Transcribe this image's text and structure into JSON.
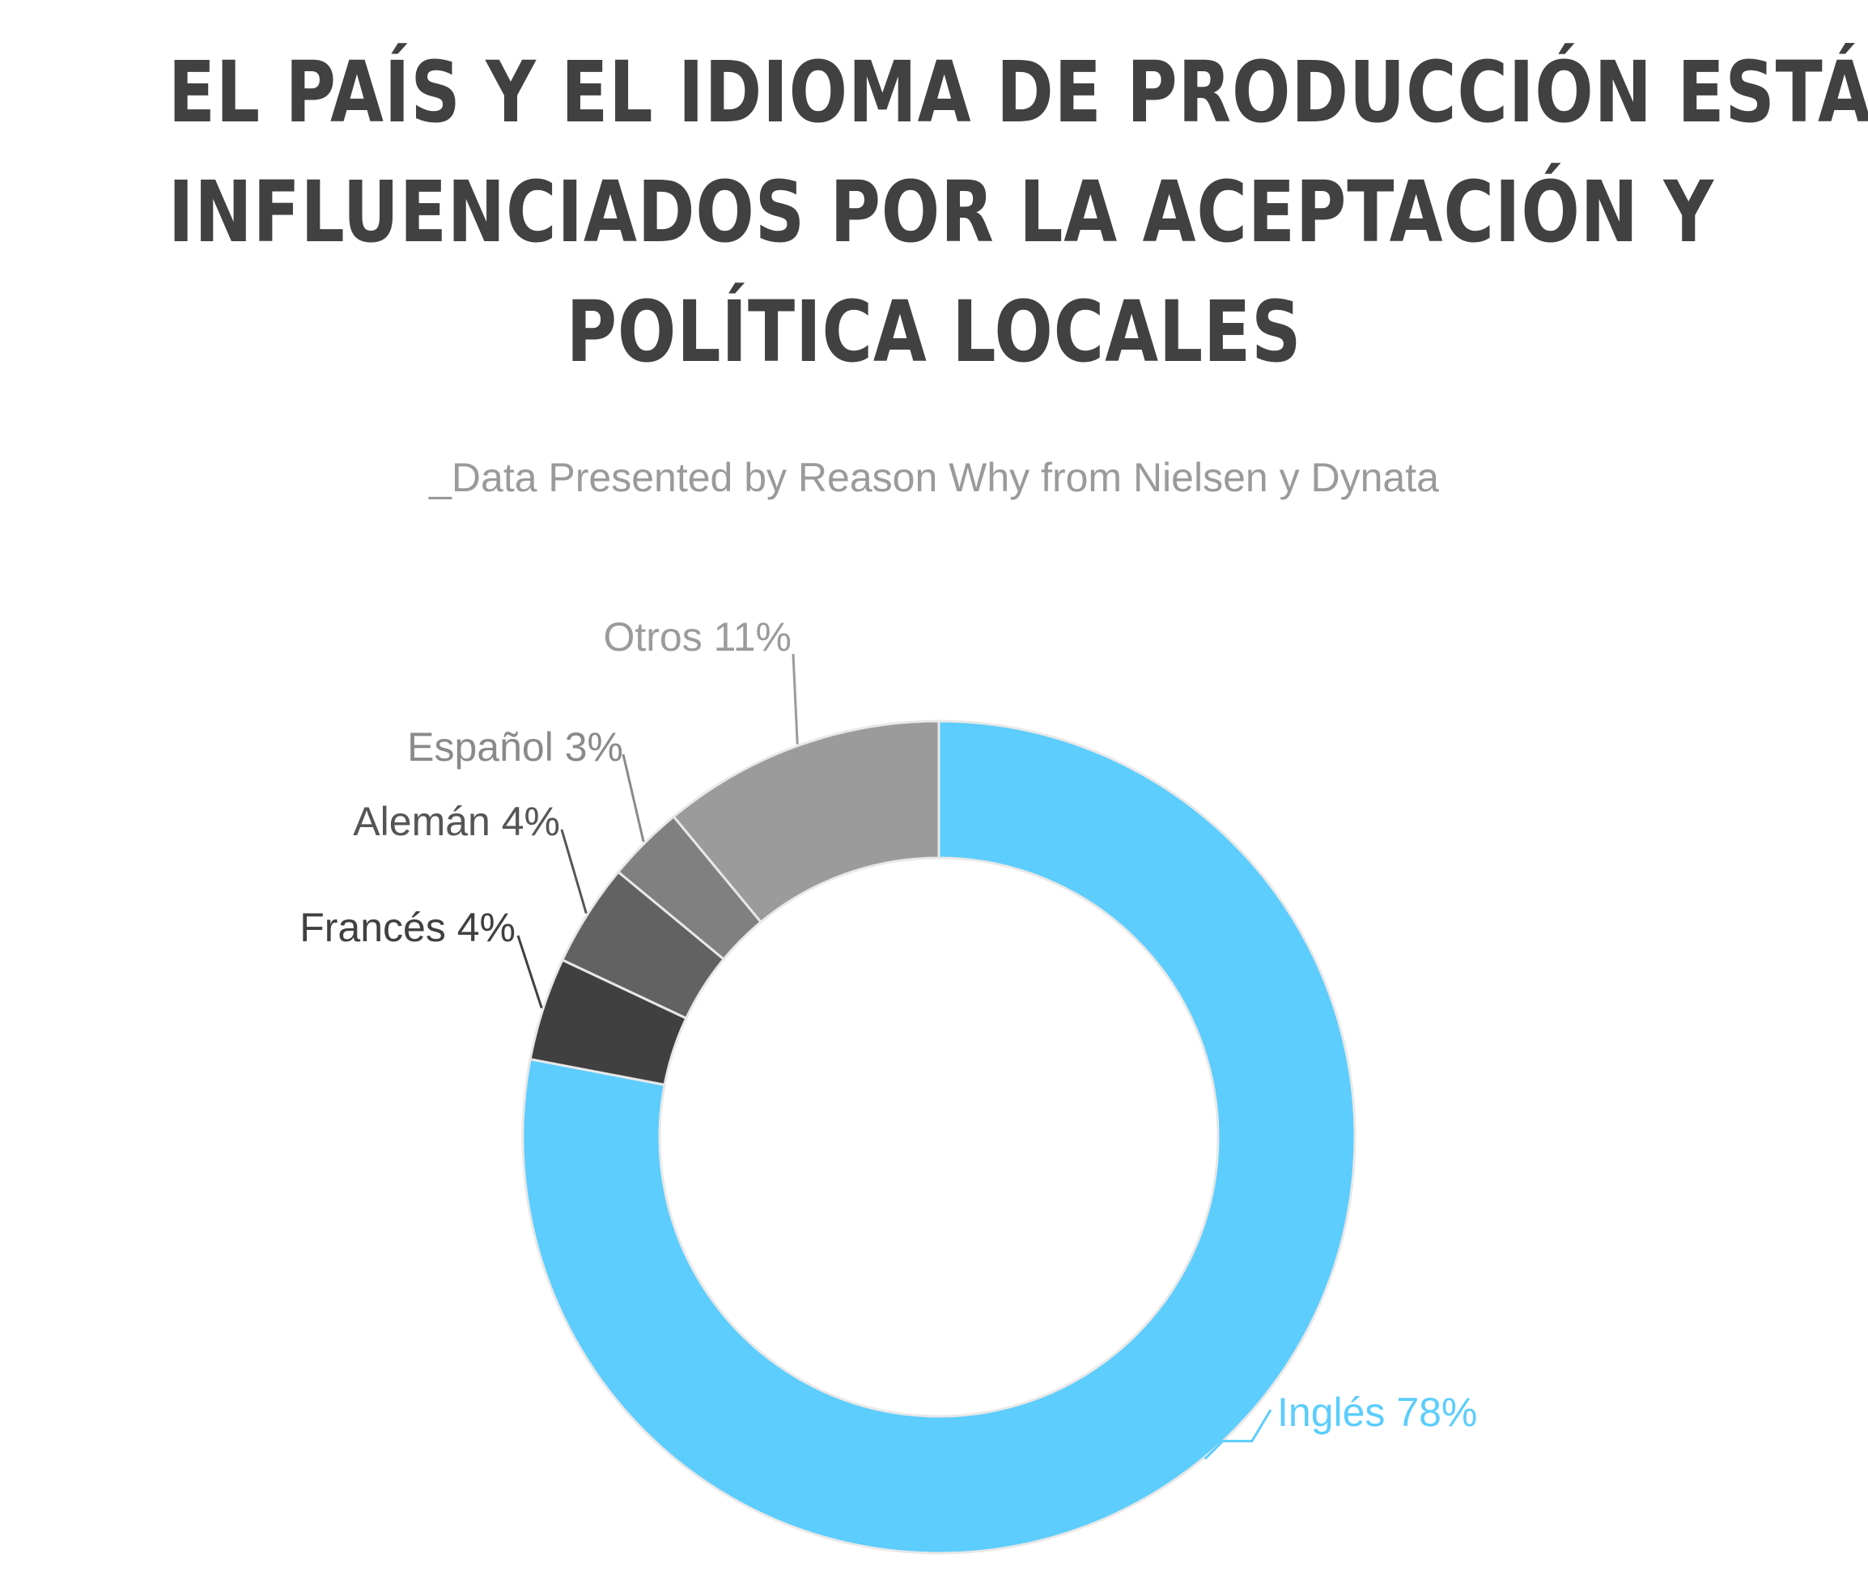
{
  "header": {
    "title_lines": [
      "EL PAÍS Y EL IDIOMA DE PRODUCCIÓN ESTÁN",
      "INFLUENCIADOS POR LA ACEPTACIÓN Y",
      "POLÍTICA LOCALES"
    ],
    "subtitle": "_Data Presented by Reason Why from Nielsen y Dynata"
  },
  "chart_data": {
    "type": "pie",
    "variant": "donut",
    "title": "EL PAÍS Y EL IDIOMA DE PRODUCCIÓN ESTÁN INFLUENCIADOS POR LA ACEPTACIÓN Y POLÍTICA LOCALES",
    "subtitle": "_Data Presented by Reason Why from Nielsen y Dynata",
    "slices": [
      {
        "label": "Inglés 78%",
        "category": "Inglés",
        "value": 78,
        "color": "#5ccdfd",
        "label_color": "#5ccdfd"
      },
      {
        "label": "Francés 4%",
        "category": "Francés",
        "value": 4,
        "color": "#404040",
        "label_color": "#404040"
      },
      {
        "label": "Alemán 4%",
        "category": "Alemán",
        "value": 4,
        "color": "#626262",
        "label_color": "#555555"
      },
      {
        "label": "Español 3%",
        "category": "Español",
        "value": 3,
        "color": "#808080",
        "label_color": "#8a8a8a"
      },
      {
        "label": "Otros 11%",
        "category": "Otros",
        "value": 11,
        "color": "#9b9b9b",
        "label_color": "#9b9b9b"
      }
    ],
    "start": "12 o'clock",
    "direction": "clockwise",
    "legend": "none",
    "slice_border_color": "#e8e8e8"
  }
}
